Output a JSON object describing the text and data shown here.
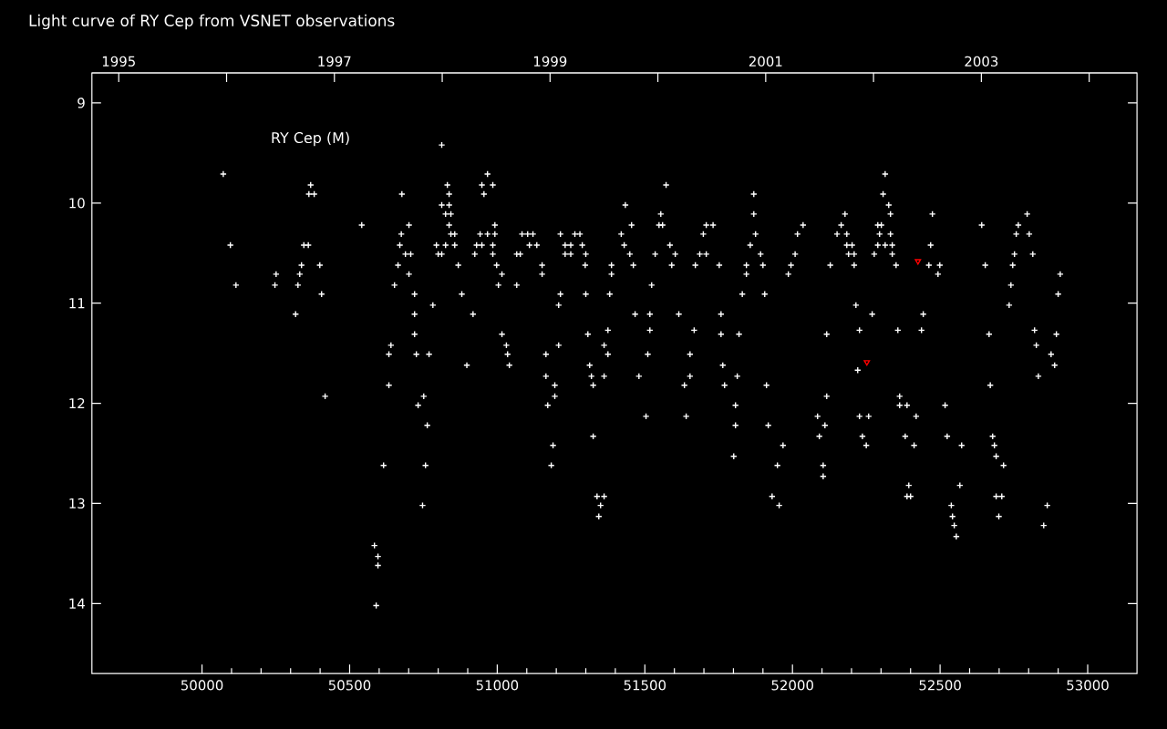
{
  "chart_data": {
    "type": "scatter",
    "title": "Light curve of RY Cep from VSNET observations",
    "annotations": [
      "RY Cep (M)"
    ],
    "marker": "cross",
    "xlim": [
      49627,
      53167
    ],
    "xticks": [
      50000,
      50500,
      51000,
      51500,
      52000,
      52500,
      53000
    ],
    "x2lim": [
      1994.751,
      2004.443
    ],
    "x2ticks": [
      1995,
      {
        "value": 1996,
        "label": null
      },
      1997,
      {
        "value": 1998,
        "label": null
      },
      1999,
      {
        "value": 2000,
        "label": null
      },
      2001,
      {
        "value": 2002,
        "label": null
      },
      2003,
      {
        "value": 2004,
        "label": null
      }
    ],
    "ylim": [
      14.7,
      8.7
    ],
    "yticks": [
      9,
      10,
      11,
      12,
      13,
      14
    ],
    "series": [
      {
        "color": "#ffffff",
        "x": [
          50072,
          50096,
          50115,
          50247,
          50251,
          50325,
          50331,
          50337,
          50345,
          50360,
          50368,
          50362,
          50380,
          50399,
          50405,
          50317,
          50417,
          50541,
          50584,
          50596,
          50596,
          50590,
          50615,
          50633,
          50633,
          50640,
          50652,
          50664,
          50670,
          50675,
          50677,
          50701,
          50689,
          50707,
          50701,
          50720,
          50720,
          50720,
          50726,
          50769,
          50751,
          50732,
          50763,
          50757,
          50747,
          50782,
          50794,
          50812,
          50831,
          50837,
          50812,
          50837,
          50825,
          50843,
          50837,
          50843,
          50856,
          50825,
          50856,
          50800,
          50812,
          50868,
          50880,
          50918,
          50897,
          50924,
          50930,
          50948,
          50942,
          50967,
          50992,
          50948,
          50985,
          50967,
          50955,
          50992,
          50985,
          50985,
          50998,
          51016,
          51004,
          51066,
          51016,
          51031,
          51035,
          51041,
          51066,
          51078,
          51084,
          51103,
          51121,
          51109,
          51134,
          51152,
          51152,
          51165,
          51165,
          51171,
          51195,
          51195,
          51189,
          51183,
          51208,
          51208,
          51214,
          51214,
          51230,
          51249,
          51230,
          51249,
          51263,
          51280,
          51288,
          51300,
          51298,
          51300,
          51307,
          51313,
          51319,
          51325,
          51325,
          51338,
          51362,
          51350,
          51344,
          51362,
          51375,
          51362,
          51375,
          51381,
          51387,
          51387,
          51420,
          51430,
          51434,
          51449,
          51455,
          51461,
          51467,
          51480,
          51504,
          51510,
          51517,
          51517,
          51523,
          51535,
          51554,
          51548,
          51560,
          51572,
          51585,
          51591,
          51603,
          51615,
          51640,
          51634,
          51653,
          51653,
          51671,
          51667,
          51686,
          51708,
          51698,
          51708,
          51731,
          51752,
          51758,
          51758,
          51819,
          51764,
          51770,
          51813,
          51807,
          51807,
          51801,
          51830,
          51844,
          51844,
          51857,
          51869,
          51869,
          51875,
          51892,
          51900,
          51906,
          51912,
          51918,
          51968,
          51949,
          51931,
          51955,
          51986,
          51995,
          52009,
          52017,
          52036,
          52116,
          52116,
          52085,
          52110,
          52091,
          52104,
          52104,
          52128,
          52151,
          52184,
          52165,
          52178,
          52184,
          52202,
          52190,
          52209,
          52209,
          52215,
          52227,
          52221,
          52270,
          52227,
          52258,
          52237,
          52250,
          52277,
          52289,
          52301,
          52295,
          52289,
          52314,
          52338,
          52307,
          52314,
          52326,
          52332,
          52332,
          52338,
          52351,
          52357,
          52363,
          52363,
          52388,
          52382,
          52412,
          52419,
          52394,
          52388,
          52400,
          52437,
          52443,
          52462,
          52474,
          52468,
          52493,
          52499,
          52517,
          52524,
          52573,
          52567,
          52538,
          52542,
          52548,
          52555,
          52641,
          52653,
          52666,
          52670,
          52678,
          52684,
          52690,
          52715,
          52690,
          52709,
          52699,
          52734,
          52740,
          52746,
          52752,
          52814,
          52758,
          52765,
          52795,
          52802,
          52820,
          52826,
          52833,
          52876,
          52888,
          52894,
          52900,
          52907,
          52863,
          52851
        ],
        "values": [
          9.71,
          10.42,
          10.82,
          10.82,
          10.71,
          10.82,
          10.71,
          10.62,
          10.42,
          10.42,
          9.82,
          9.91,
          9.91,
          10.62,
          10.91,
          11.11,
          11.93,
          10.22,
          13.42,
          13.53,
          13.62,
          14.02,
          12.62,
          11.82,
          11.51,
          11.42,
          10.82,
          10.62,
          10.42,
          10.31,
          9.91,
          10.22,
          10.51,
          10.51,
          10.71,
          10.91,
          11.11,
          11.31,
          11.51,
          11.51,
          11.93,
          12.02,
          12.22,
          12.62,
          13.02,
          11.02,
          10.42,
          9.42,
          9.82,
          9.91,
          10.02,
          10.02,
          10.11,
          10.11,
          10.22,
          10.31,
          10.31,
          10.42,
          10.42,
          10.51,
          10.51,
          10.62,
          10.91,
          11.11,
          11.62,
          10.51,
          10.42,
          10.42,
          10.31,
          10.31,
          10.31,
          9.82,
          9.82,
          9.71,
          9.91,
          10.22,
          10.42,
          10.51,
          10.62,
          10.71,
          10.82,
          10.82,
          11.31,
          11.42,
          11.51,
          11.62,
          10.51,
          10.51,
          10.31,
          10.31,
          10.31,
          10.42,
          10.42,
          10.62,
          10.71,
          11.51,
          11.73,
          12.02,
          11.82,
          11.93,
          12.42,
          12.62,
          11.42,
          11.02,
          10.91,
          10.31,
          10.42,
          10.42,
          10.51,
          10.51,
          10.31,
          10.31,
          10.42,
          10.51,
          10.62,
          10.91,
          11.31,
          11.62,
          11.73,
          11.82,
          12.33,
          12.93,
          12.93,
          13.02,
          13.13,
          11.42,
          11.51,
          11.73,
          11.27,
          10.91,
          10.62,
          10.71,
          10.31,
          10.42,
          10.02,
          10.51,
          10.22,
          10.62,
          11.11,
          11.73,
          12.13,
          11.51,
          11.11,
          11.27,
          10.82,
          10.51,
          10.11,
          10.22,
          10.22,
          9.82,
          10.42,
          10.62,
          10.51,
          11.11,
          12.13,
          11.82,
          11.73,
          11.51,
          10.62,
          11.27,
          10.51,
          10.51,
          10.31,
          10.22,
          10.22,
          10.62,
          11.11,
          11.31,
          11.31,
          11.62,
          11.82,
          11.73,
          12.02,
          12.22,
          12.53,
          10.91,
          10.62,
          10.71,
          10.42,
          9.91,
          10.11,
          10.31,
          10.51,
          10.62,
          10.91,
          11.82,
          12.22,
          12.42,
          12.62,
          12.93,
          13.02,
          10.71,
          10.62,
          10.51,
          10.31,
          10.22,
          11.31,
          11.93,
          12.13,
          12.22,
          12.33,
          12.62,
          12.73,
          10.62,
          10.31,
          10.31,
          10.22,
          10.11,
          10.42,
          10.42,
          10.51,
          10.51,
          10.62,
          11.02,
          11.27,
          11.67,
          11.11,
          12.13,
          12.13,
          12.33,
          12.42,
          10.51,
          10.22,
          10.22,
          10.31,
          10.42,
          10.42,
          10.42,
          9.91,
          9.71,
          10.02,
          10.11,
          10.31,
          10.51,
          10.62,
          11.27,
          11.93,
          12.02,
          12.02,
          12.33,
          12.42,
          12.13,
          12.82,
          12.93,
          12.93,
          11.27,
          11.11,
          10.62,
          10.11,
          10.42,
          10.71,
          10.62,
          12.02,
          12.33,
          12.42,
          12.82,
          13.02,
          13.13,
          13.22,
          13.33,
          10.22,
          10.62,
          11.31,
          11.82,
          12.33,
          12.42,
          12.53,
          12.62,
          12.93,
          12.93,
          13.13,
          11.02,
          10.82,
          10.62,
          10.51,
          10.51,
          10.31,
          10.22,
          10.11,
          10.31,
          11.27,
          11.42,
          11.73,
          11.51,
          11.62,
          11.31,
          10.91,
          10.71,
          13.02,
          13.22
        ]
      },
      {
        "color": "#ff0000",
        "marker": "triangle",
        "x": [
          52252,
          52425
        ],
        "values": [
          11.59,
          10.58
        ]
      }
    ]
  }
}
